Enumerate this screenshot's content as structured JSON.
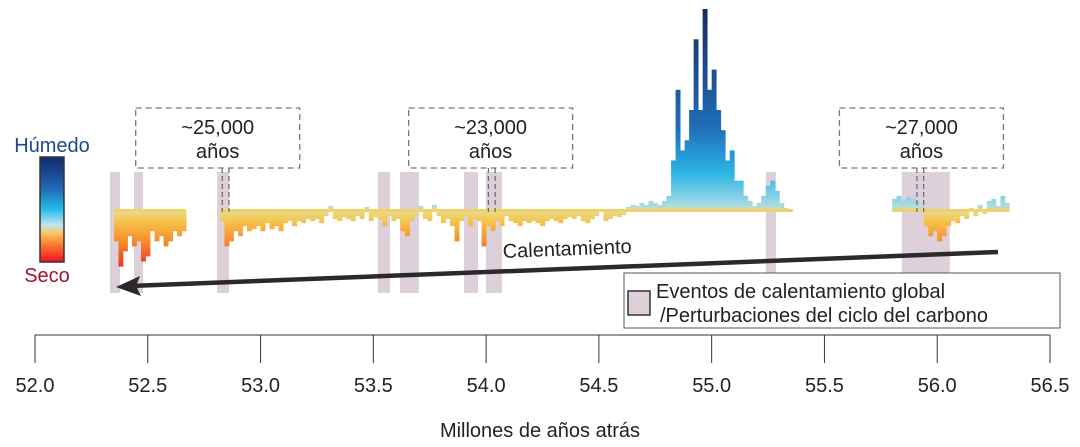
{
  "chart_data": {
    "type": "area",
    "title": "",
    "xlabel": "Millones de años atrás",
    "ylabel": "",
    "xlim": [
      52.0,
      56.5
    ],
    "x_ticks": [
      "52.0",
      "52.5",
      "53.0",
      "53.5",
      "54.0",
      "54.5",
      "55.0",
      "55.5",
      "56.0",
      "56.5"
    ],
    "grid": false,
    "color_scale": {
      "top_label": "Húmedo",
      "bottom_label": "Seco",
      "top_color": "#1b4a8c",
      "bottom_color": "#a3122e"
    },
    "series_segments": [
      {
        "x_start": 52.35,
        "x_step": 0.02,
        "values": [
          -0.3,
          -0.55,
          -0.4,
          -0.25,
          -0.35,
          -0.3,
          -0.5,
          -0.45,
          -0.2,
          -0.3,
          -0.25,
          -0.35,
          -0.3,
          -0.2,
          -0.25,
          -0.2
        ]
      },
      {
        "x_start": 52.82,
        "x_step": 0.02,
        "values": [
          -0.1,
          -0.35,
          -0.3,
          -0.2,
          -0.25,
          -0.15,
          -0.2,
          -0.18,
          -0.15,
          -0.2,
          -0.12,
          -0.18,
          -0.15,
          -0.2,
          -0.12,
          -0.1,
          -0.15,
          -0.1,
          -0.12,
          -0.08,
          -0.1,
          -0.08,
          -0.12,
          -0.05,
          0.05,
          -0.08,
          -0.1,
          -0.06,
          -0.08,
          -0.1,
          -0.05,
          -0.08,
          0.04,
          -0.1,
          -0.06,
          -0.08,
          -0.15,
          -0.05,
          -0.1,
          -0.08,
          -0.2,
          -0.25,
          -0.1,
          -0.05,
          0.05,
          -0.08,
          -0.1,
          0.06,
          -0.05,
          -0.12,
          -0.08,
          -0.15,
          -0.3,
          -0.1,
          -0.05,
          -0.15,
          -0.08,
          -0.1,
          -0.35,
          -0.15,
          -0.2,
          -0.1,
          -0.15,
          -0.05,
          -0.1,
          -0.12,
          -0.15,
          -0.1,
          -0.12,
          -0.1,
          -0.12,
          -0.15,
          -0.1,
          -0.08,
          -0.1,
          -0.12,
          -0.08,
          -0.06,
          -0.08,
          -0.05,
          -0.1,
          -0.12,
          -0.08,
          -0.05,
          0.02,
          -0.1,
          -0.08,
          -0.05,
          -0.06,
          -0.04,
          0.04,
          0.06,
          0.05,
          0.08,
          0.06,
          0.1,
          0.08,
          0.06,
          0.1,
          0.15,
          0.5,
          1.2,
          0.6,
          0.7,
          1.0,
          1.7,
          1.0,
          2.0,
          1.2,
          1.4,
          1.0,
          0.8,
          0.5,
          0.6,
          0.3,
          0.3,
          0.15,
          0.1,
          0.05,
          0.08,
          0.15,
          0.25,
          0.3,
          0.2,
          0.08,
          0.03,
          0.02
        ]
      },
      {
        "x_start": 55.8,
        "x_step": 0.02,
        "values": [
          0.12,
          0.15,
          0.1,
          0.14,
          0.12,
          0.1,
          0.05,
          -0.15,
          -0.25,
          -0.2,
          -0.3,
          -0.25,
          -0.15,
          -0.1,
          -0.12,
          -0.05,
          -0.08,
          0.03,
          -0.05,
          0.06,
          -0.03,
          0.1,
          0.12,
          0.05,
          0.15,
          0.08
        ]
      }
    ],
    "event_bands": [
      [
        52.332,
        52.377
      ],
      [
        52.439,
        52.479
      ],
      [
        52.807,
        52.86
      ],
      [
        53.52,
        53.574
      ],
      [
        53.618,
        53.702
      ],
      [
        53.902,
        53.964
      ],
      [
        53.999,
        54.07
      ],
      [
        55.24,
        55.285
      ],
      [
        55.843,
        56.056
      ]
    ],
    "band_color": "#ddd0da",
    "annotations": [
      {
        "line1": "~25,000",
        "line2": "años",
        "x_pair": [
          52.83,
          52.86
        ],
        "box_center": 52.81
      },
      {
        "line1": "~23,000",
        "line2": "años",
        "x_pair": [
          54.01,
          54.04
        ],
        "box_center": 54.02
      },
      {
        "line1": "~27,000",
        "line2": "años",
        "x_pair": [
          55.91,
          55.94
        ],
        "box_center": 55.93
      }
    ],
    "arrow_label": "Calentamiento",
    "legend": {
      "placement": "bottom-right",
      "line1": "Eventos de calentamiento global",
      "line2": "/Perturbaciones del ciclo del carbono"
    }
  }
}
